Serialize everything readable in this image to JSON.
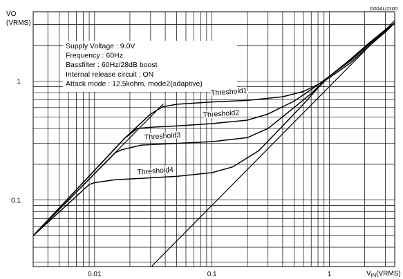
{
  "chart_data": {
    "type": "line",
    "document_id": "D00AU1100",
    "x_scale": "log",
    "y_scale": "log",
    "xlim": [
      0.003,
      3.6
    ],
    "ylim": [
      0.0275,
      3.85
    ],
    "grid": true,
    "x_axis_label": {
      "main": "V",
      "sub": "IN",
      "unit": "(VRMS)"
    },
    "y_axis_label": {
      "line1": "VO",
      "line2": "(VRMS)"
    },
    "x_ticks": [
      {
        "value": 0.01,
        "label": "0.01"
      },
      {
        "value": 0.1,
        "label": "0.1"
      },
      {
        "value": 1,
        "label": "1"
      }
    ],
    "y_ticks": [
      {
        "value": 0.1,
        "label": "0.1"
      },
      {
        "value": 1,
        "label": "1"
      }
    ],
    "conditions": [
      "Supply Voltage : 9.0V",
      "Frequency : 60Hz",
      "Bassfilter : 60Hz/28dB boost",
      "Internal release circuit : ON",
      "Attack mode : 12.5kohm, mode2(adaptive)"
    ],
    "reference_lines": [
      {
        "points": [
          [
            0.003,
            0.05
          ],
          [
            0.0385,
            0.645
          ]
        ]
      },
      {
        "points": [
          [
            0.0305,
            0.0275
          ],
          [
            3.6,
            3.25
          ]
        ]
      }
    ],
    "series": [
      {
        "name": "Threshold1",
        "points": [
          [
            0.003,
            0.05
          ],
          [
            0.018,
            0.33
          ],
          [
            0.03,
            0.53
          ],
          [
            0.038,
            0.61
          ],
          [
            0.05,
            0.64
          ],
          [
            0.1,
            0.67
          ],
          [
            0.2,
            0.69
          ],
          [
            0.4,
            0.74
          ],
          [
            0.6,
            0.82
          ],
          [
            0.8,
            0.94
          ],
          [
            1.0,
            1.07
          ],
          [
            1.5,
            1.42
          ],
          [
            2.2,
            2.0
          ],
          [
            3.0,
            2.6
          ],
          [
            3.6,
            3.1
          ]
        ]
      },
      {
        "name": "Threshold2",
        "points": [
          [
            0.003,
            0.05
          ],
          [
            0.018,
            0.33
          ],
          [
            0.023,
            0.4
          ],
          [
            0.03,
            0.41
          ],
          [
            0.05,
            0.42
          ],
          [
            0.1,
            0.44
          ],
          [
            0.2,
            0.47
          ],
          [
            0.3,
            0.53
          ],
          [
            0.5,
            0.68
          ],
          [
            0.7,
            0.85
          ],
          [
            1.0,
            1.1
          ],
          [
            1.5,
            1.48
          ],
          [
            2.2,
            2.06
          ],
          [
            3.0,
            2.65
          ],
          [
            3.6,
            3.1
          ]
        ]
      },
      {
        "name": "Threshold3",
        "points": [
          [
            0.003,
            0.05
          ],
          [
            0.015,
            0.25
          ],
          [
            0.017,
            0.265
          ],
          [
            0.025,
            0.29
          ],
          [
            0.05,
            0.3
          ],
          [
            0.1,
            0.31
          ],
          [
            0.2,
            0.335
          ],
          [
            0.3,
            0.4
          ],
          [
            0.5,
            0.6
          ],
          [
            0.7,
            0.79
          ],
          [
            1.0,
            1.1
          ],
          [
            1.5,
            1.5
          ],
          [
            2.2,
            2.1
          ],
          [
            3.0,
            2.7
          ],
          [
            3.6,
            3.1
          ]
        ]
      },
      {
        "name": "Threshold4",
        "points": [
          [
            0.003,
            0.05
          ],
          [
            0.009,
            0.135
          ],
          [
            0.01,
            0.14
          ],
          [
            0.015,
            0.148
          ],
          [
            0.025,
            0.152
          ],
          [
            0.05,
            0.158
          ],
          [
            0.1,
            0.17
          ],
          [
            0.15,
            0.19
          ],
          [
            0.25,
            0.26
          ],
          [
            0.4,
            0.42
          ],
          [
            0.6,
            0.64
          ],
          [
            0.8,
            0.88
          ],
          [
            1.0,
            1.1
          ],
          [
            1.5,
            1.52
          ],
          [
            2.2,
            2.12
          ],
          [
            3.0,
            2.72
          ],
          [
            3.6,
            3.1
          ]
        ]
      }
    ],
    "curve_labels": [
      {
        "series": "Threshold1",
        "x": 0.14,
        "y": 0.78
      },
      {
        "series": "Threshold2",
        "x": 0.12,
        "y": 0.51
      },
      {
        "series": "Threshold3",
        "x": 0.038,
        "y": 0.33
      },
      {
        "series": "Threshold4",
        "x": 0.033,
        "y": 0.168
      }
    ]
  }
}
